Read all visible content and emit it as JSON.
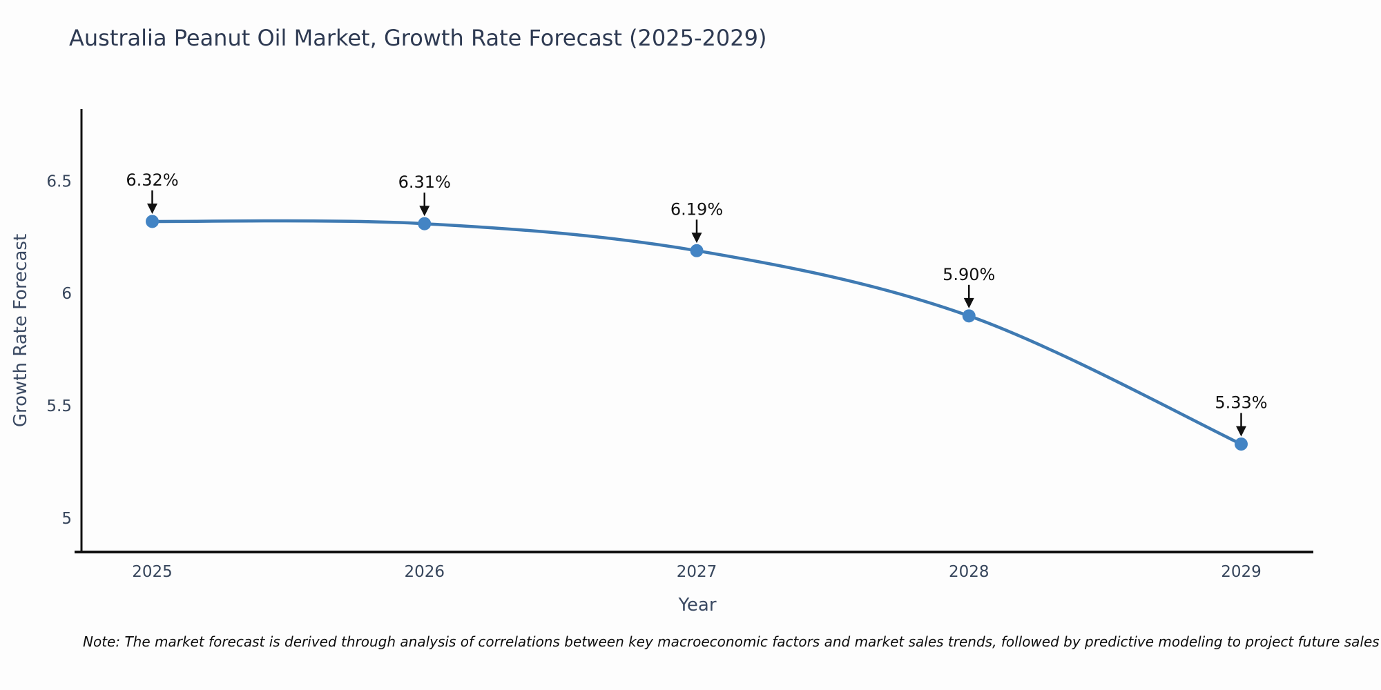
{
  "page": {
    "background_color": "#fdfdfd"
  },
  "footnote": {
    "text": "Note: The market forecast is derived through analysis of correlations between key macroeconomic factors and market sales trends, followed by predictive modeling to project future sales"
  },
  "chart_data": {
    "type": "line",
    "title": "Australia Peanut Oil Market, Growth Rate Forecast (2025-2029)",
    "xlabel": "Year",
    "ylabel": "Growth Rate Forecast",
    "x": [
      2025,
      2026,
      2027,
      2028,
      2029
    ],
    "values": [
      6.32,
      6.31,
      6.19,
      5.9,
      5.33
    ],
    "point_labels": [
      "6.32%",
      "6.31%",
      "6.19%",
      "5.90%",
      "5.33%"
    ],
    "x_tick_labels": [
      "2025",
      "2026",
      "2027",
      "2028",
      "2029"
    ],
    "y_ticks": [
      5,
      5.5,
      6,
      6.5
    ],
    "y_tick_labels": [
      "5",
      "5.5",
      "6",
      "6.5"
    ],
    "xlim": [
      2024.74,
      2029.26
    ],
    "ylim": [
      4.85,
      6.82
    ],
    "grid": false,
    "legend": "none",
    "line_color": "#3f7ab2",
    "marker_color": "#4384c4",
    "axis_color": "#111111",
    "tick_color": "#37465c",
    "title_color": "#2e3a52",
    "annotation_color": "#111111"
  }
}
